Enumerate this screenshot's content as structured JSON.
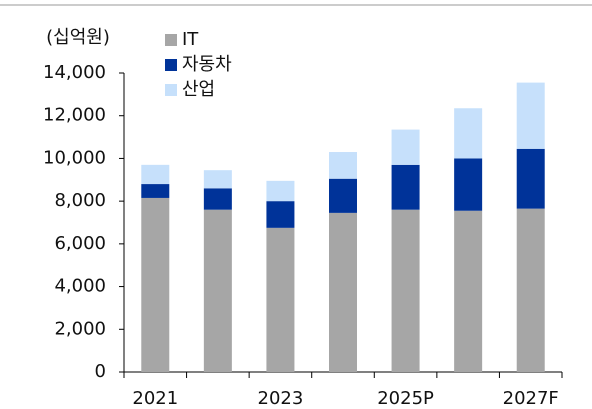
{
  "chart_data": {
    "type": "stacked_bar",
    "y_label": "(십억원)",
    "categories": [
      "2021",
      null,
      "2023",
      null,
      "2025P",
      null,
      "2027F"
    ],
    "series": [
      {
        "name": "IT",
        "color": "#a6a6a6",
        "values": [
          8150,
          7600,
          6750,
          7450,
          7600,
          7550,
          7650
        ]
      },
      {
        "name": "자동차",
        "color": "#003399",
        "values": [
          650,
          1000,
          1250,
          1600,
          2100,
          2450,
          2800
        ]
      },
      {
        "name": "산업",
        "color": "#c6e0fb",
        "values": [
          900,
          850,
          950,
          1250,
          1650,
          2350,
          3100
        ]
      }
    ],
    "ylim": [
      0,
      14000
    ],
    "yticks": [
      0,
      {
        "value": 2000,
        "label": "2,000"
      },
      {
        "value": 4000,
        "label": "4,000"
      },
      {
        "value": 6000,
        "label": "6,000"
      },
      {
        "value": 8000,
        "label": "8,000"
      },
      {
        "value": 10000,
        "label": "10,000"
      },
      {
        "value": 12000,
        "label": "12,000"
      },
      {
        "value": 14000,
        "label": "14,000"
      }
    ],
    "grid": false,
    "legend": "top-left"
  }
}
